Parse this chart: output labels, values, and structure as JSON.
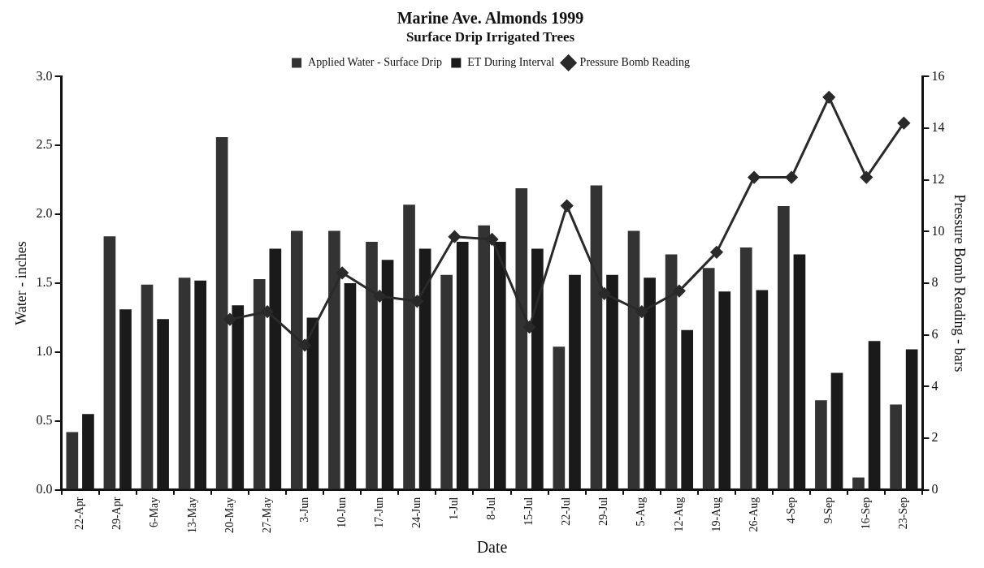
{
  "chart_data": {
    "type": "bar",
    "title": "Marine Ave. Almonds 1999",
    "subtitle": "Surface Drip Irrigated Trees",
    "xlabel": "Date",
    "ylabel": "Water - inches",
    "y2label": "Pressure Bomb Reading - bars",
    "categories": [
      "22-Apr",
      "29-Apr",
      "6-May",
      "13-May",
      "20-May",
      "27-May",
      "3-Jun",
      "10-Jun",
      "17-Jun",
      "24-Jun",
      "1-Jul",
      "8-Jul",
      "15-Jul",
      "22-Jul",
      "29-Jul",
      "5-Aug",
      "12-Aug",
      "19-Aug",
      "26-Aug",
      "4-Sep",
      "9-Sep",
      "16-Sep",
      "23-Sep"
    ],
    "series": [
      {
        "name": "Applied Water - Surface Drip",
        "color": "#333333",
        "values": [
          0.42,
          1.84,
          1.49,
          1.54,
          2.56,
          1.53,
          1.88,
          1.88,
          1.8,
          2.07,
          1.56,
          1.92,
          2.19,
          1.04,
          2.21,
          1.88,
          1.71,
          1.61,
          1.76,
          2.06,
          0.65,
          0.09,
          0.62
        ]
      },
      {
        "name": "ET During Interval",
        "color": "#1a1a1a",
        "values": [
          0.55,
          1.31,
          1.24,
          1.52,
          1.34,
          1.75,
          1.25,
          1.5,
          1.67,
          1.75,
          1.8,
          1.8,
          1.75,
          1.56,
          1.56,
          1.54,
          1.16,
          1.44,
          1.45,
          1.71,
          0.85,
          1.08,
          1.02
        ]
      },
      {
        "name": "Pressure Bomb Reading",
        "type": "line",
        "axis": "y2",
        "color": "#2a2a2a",
        "marker": "diamond",
        "values": [
          null,
          null,
          null,
          null,
          6.6,
          6.9,
          5.6,
          8.4,
          7.5,
          7.3,
          9.8,
          9.7,
          6.3,
          11.0,
          7.6,
          6.9,
          7.7,
          9.2,
          12.1,
          12.1,
          15.2,
          12.1,
          14.2
        ]
      }
    ],
    "ylim": [
      0,
      3
    ],
    "yticks": [
      {
        "value": 0,
        "label": "0.0"
      },
      0.5,
      {
        "value": 1,
        "label": "1.0"
      },
      1.5,
      {
        "value": 2,
        "label": "2.0"
      },
      2.5,
      {
        "value": 3,
        "label": "3.0"
      }
    ],
    "y2lim": [
      0,
      16
    ],
    "y2ticks": [
      0,
      2,
      4,
      6,
      8,
      10,
      12,
      14,
      16
    ],
    "grid": false,
    "legend": "top"
  }
}
